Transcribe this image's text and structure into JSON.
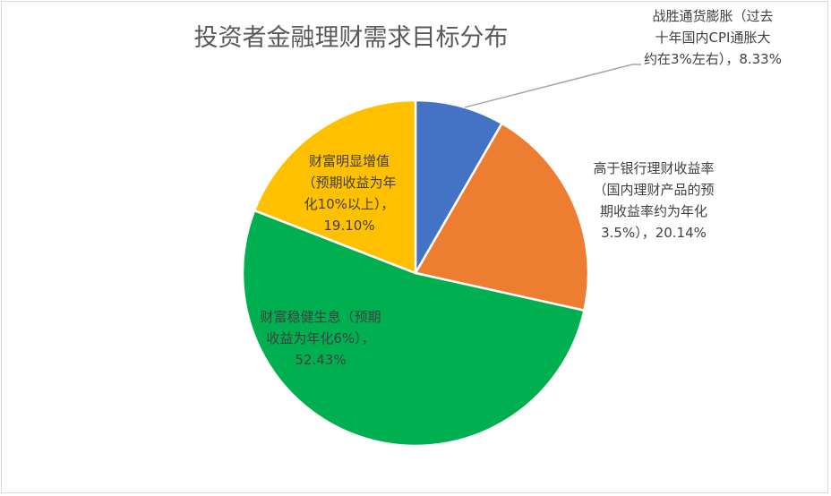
{
  "chart_data": {
    "type": "pie",
    "title": "投资者金融理财需求目标分布",
    "slices": [
      {
        "name": "战胜通货膨胀（过去十年国内CPI通胀大约在3%左右）",
        "label_lines": [
          "战胜通货膨胀（过去",
          "十年国内CPI通胀大",
          "约在3%左右），8.33%"
        ],
        "value": 8.33,
        "color": "#4472C4"
      },
      {
        "name": "高于银行理财收益率（国内理财产品的预期收益率约为年化3.5%）",
        "label_lines": [
          "高于银行理财收益率",
          "（国内理财产品的预",
          "期收益率约为年化",
          "3.5%），20.14%"
        ],
        "value": 20.14,
        "color": "#ED7D31"
      },
      {
        "name": "财富稳健生息（预期收益为年化6%）",
        "label_lines": [
          "财富稳健生息（预期",
          "收益为年化6%），",
          "52.43%"
        ],
        "value": 52.43,
        "color": "#00B050"
      },
      {
        "name": "财富明显增值（预期收益为年化10%以上）",
        "label_lines": [
          "财富明显增值",
          "（预期收益为年",
          "化10%以上），",
          "19.10%"
        ],
        "value": 19.1,
        "color": "#FFC000"
      }
    ],
    "legend": "none",
    "units": "%"
  },
  "colors": {
    "leader_line": "#a6a6a6",
    "border": "#d9d9d9",
    "text": "#404040"
  }
}
